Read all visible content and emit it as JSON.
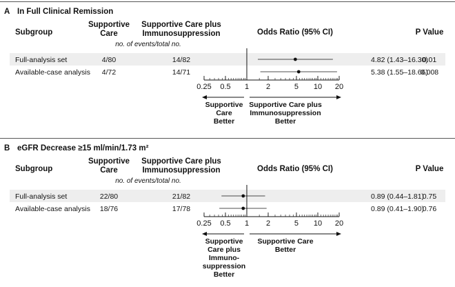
{
  "chart_data": [
    {
      "type": "forest",
      "panel_letter": "A",
      "title": "In Full Clinical Remission",
      "columns": {
        "subgroup": "Subgroup",
        "supportive": [
          "Supportive",
          "Care"
        ],
        "immuno": [
          "Supportive Care plus",
          "Immunosuppression"
        ],
        "or": "Odds Ratio (95% CI)",
        "p": "P Value",
        "note": "no. of events/total no."
      },
      "rows": [
        {
          "label": "Full-analysis set",
          "supportive": "4/80",
          "immuno": "14/82",
          "or": 4.82,
          "lo": 1.43,
          "hi": 16.3,
          "or_text": "4.82 (1.43–16.30)",
          "p": "0.01",
          "shaded": true
        },
        {
          "label": "Available-case analysis",
          "supportive": "4/72",
          "immuno": "14/71",
          "or": 5.38,
          "lo": 1.55,
          "hi": 18.66,
          "or_text": "5.38 (1.55–18.66)",
          "p": "0.008",
          "shaded": false
        }
      ],
      "xscale": "log",
      "xlim": [
        0.25,
        20
      ],
      "xticks": [
        "0.25",
        "0.5",
        "1",
        "2",
        "5",
        "10",
        "20"
      ],
      "left_label": [
        "Supportive",
        "Care",
        "Better"
      ],
      "right_label": [
        "Supportive Care plus",
        "Immunosuppression",
        "Better"
      ]
    },
    {
      "type": "forest",
      "panel_letter": "B",
      "title": "eGFR Decrease ≥15 ml/min/1.73 m²",
      "columns": {
        "subgroup": "Subgroup",
        "supportive": [
          "Supportive",
          "Care"
        ],
        "immuno": [
          "Supportive Care plus",
          "Immunosuppression"
        ],
        "or": "Odds Ratio (95% CI)",
        "p": "P Value",
        "note": "no. of events/total no."
      },
      "rows": [
        {
          "label": "Full-analysis set",
          "supportive": "22/80",
          "immuno": "21/82",
          "or": 0.89,
          "lo": 0.44,
          "hi": 1.81,
          "or_text": "0.89 (0.44–1.81)",
          "p": "0.75",
          "shaded": true
        },
        {
          "label": "Available-case analysis",
          "supportive": "18/76",
          "immuno": "17/78",
          "or": 0.89,
          "lo": 0.41,
          "hi": 1.9,
          "or_text": "0.89 (0.41–1.90)",
          "p": "0.76",
          "shaded": false
        }
      ],
      "xscale": "log",
      "xlim": [
        0.25,
        20
      ],
      "xticks": [
        "0.25",
        "0.5",
        "1",
        "2",
        "5",
        "10",
        "20"
      ],
      "left_label": [
        "Supportive",
        "Care plus",
        "Immuno-",
        "suppression",
        "Better"
      ],
      "right_label": [
        "Supportive Care",
        "Better"
      ]
    }
  ],
  "colors": {
    "row_shade": "#eeeeee",
    "rule": "#555555",
    "ink": "#111111"
  }
}
